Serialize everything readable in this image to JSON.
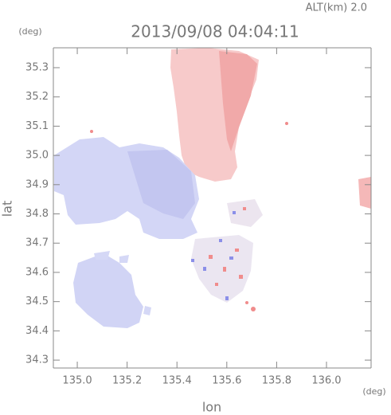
{
  "chart_data": {
    "type": "image",
    "title": "2013/09/08 04:04:11",
    "subtitle": "ALT(km) 2.0",
    "x_label": "lon",
    "x_unit": "(deg)",
    "y_label": "lat",
    "y_unit": "(deg)",
    "xlim": [
      134.904,
      136.179
    ],
    "xticks": [
      {
        "value": 135,
        "label": "135.0"
      },
      135.2,
      135.4,
      135.6,
      135.8,
      {
        "value": 136,
        "label": "136.0"
      }
    ],
    "ylim": [
      34.273,
      35.368
    ],
    "yticks": [
      34.3,
      34.4,
      34.5,
      34.6,
      34.7,
      34.8,
      34.9,
      {
        "value": 35,
        "label": "35.0"
      },
      35.1,
      35.2,
      35.3
    ]
  }
}
